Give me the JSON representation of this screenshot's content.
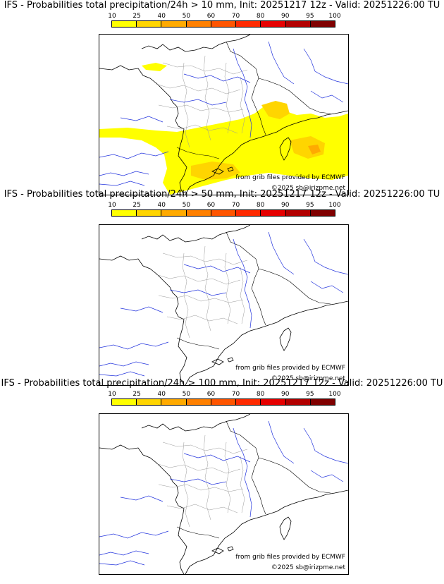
{
  "colorbar": {
    "labels": [
      "10",
      "25",
      "40",
      "50",
      "60",
      "70",
      "80",
      "90",
      "95",
      "100"
    ],
    "colors": [
      "#ffff00",
      "#ffd500",
      "#ffaa00",
      "#ff8000",
      "#ff5500",
      "#ff2a00",
      "#e60000",
      "#b30000",
      "#800000",
      "#4d0000"
    ]
  },
  "credits": {
    "source": "from grib files provided by ECMWF",
    "copyright": "©2025 sb@irizpme.net"
  },
  "panels": [
    {
      "title": "IFS - Probabilities total precipitation/24h > 10 mm, Init: 20251217 12z - Valid: 20251226:00 TU",
      "threshold_mm": 10
    },
    {
      "title": "IFS - Probabilities total precipitation/24h > 50 mm, Init: 20251217 12z - Valid: 20251226:00 TU",
      "threshold_mm": 50
    },
    {
      "title": "IFS - Probabilities total precipitation/24h > 100 mm, Init: 20251217 12z - Valid: 20251226:00 TU",
      "threshold_mm": 100
    }
  ]
}
